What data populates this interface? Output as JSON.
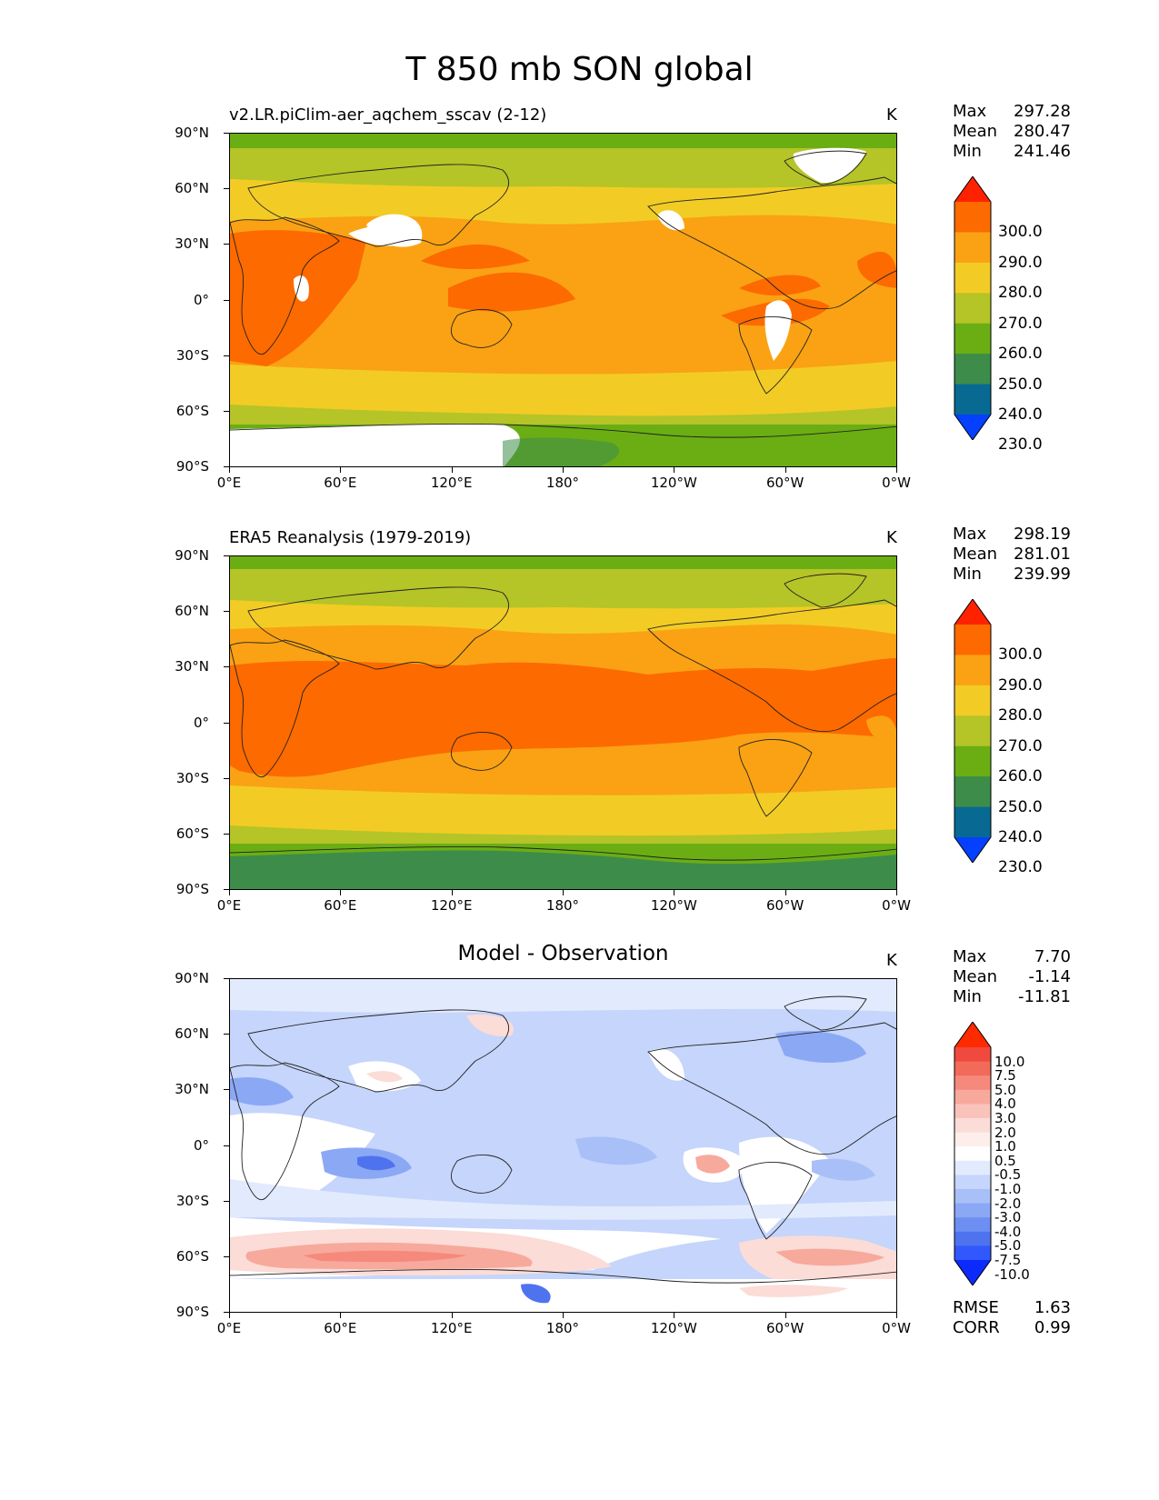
{
  "figure": {
    "title": "T 850 mb SON global"
  },
  "axes": {
    "y_ticks": [
      "90°N",
      "60°N",
      "30°N",
      "0°",
      "30°S",
      "60°S",
      "90°S"
    ],
    "x_ticks": [
      "0°E",
      "60°E",
      "120°E",
      "180°",
      "120°W",
      "60°W",
      "0°W"
    ]
  },
  "panels": [
    {
      "title": "v2.LR.piClim-aer_aqchem_sscav (2-12)",
      "units": "K",
      "stats": {
        "max_label": "Max",
        "max": "297.28",
        "mean_label": "Mean",
        "mean": "280.47",
        "min_label": "Min",
        "min": "241.46"
      },
      "colorbar": {
        "labels": [
          "300.0",
          "290.0",
          "280.0",
          "270.0",
          "260.0",
          "250.0",
          "240.0",
          "230.0"
        ],
        "colors": [
          "#ff2200",
          "#fd6a00",
          "#faa213",
          "#f2cc25",
          "#b5c427",
          "#6aae14",
          "#3d8c4a",
          "#086a92",
          "#0440fd"
        ]
      },
      "chart_data": {
        "type": "heatmap",
        "variable": "T 850 mb",
        "units": "K",
        "max": 297.28,
        "mean": 280.47,
        "min": 241.46,
        "levels": [
          230,
          240,
          250,
          260,
          270,
          280,
          290,
          300
        ]
      }
    },
    {
      "title": "ERA5 Reanalysis (1979-2019)",
      "units": "K",
      "stats": {
        "max_label": "Max",
        "max": "298.19",
        "mean_label": "Mean",
        "mean": "281.01",
        "min_label": "Min",
        "min": "239.99"
      },
      "colorbar": {
        "labels": [
          "300.0",
          "290.0",
          "280.0",
          "270.0",
          "260.0",
          "250.0",
          "240.0",
          "230.0"
        ],
        "colors": [
          "#ff2200",
          "#fd6a00",
          "#faa213",
          "#f2cc25",
          "#b5c427",
          "#6aae14",
          "#3d8c4a",
          "#086a92",
          "#0440fd"
        ]
      },
      "chart_data": {
        "type": "heatmap",
        "variable": "T 850 mb",
        "units": "K",
        "max": 298.19,
        "mean": 281.01,
        "min": 239.99,
        "levels": [
          230,
          240,
          250,
          260,
          270,
          280,
          290,
          300
        ]
      }
    },
    {
      "title": "Model - Observation",
      "units": "K",
      "stats": {
        "max_label": "Max",
        "max": "7.70",
        "mean_label": "Mean",
        "mean": "-1.14",
        "min_label": "Min",
        "min": "-11.81"
      },
      "colorbar": {
        "labels": [
          "10.0",
          "7.5",
          "5.0",
          "4.0",
          "3.0",
          "2.0",
          "1.0",
          "0.5",
          "-0.5",
          "-1.0",
          "-2.0",
          "-3.0",
          "-4.0",
          "-5.0",
          "-7.5",
          "-10.0"
        ],
        "colors": [
          "#ff2a00",
          "#f04a3e",
          "#f26a5a",
          "#f58a7c",
          "#f7a99c",
          "#f9c3bb",
          "#fbdcd7",
          "#fdeeec",
          "#ffffff",
          "#e2eafd",
          "#c5d5fb",
          "#a8bff8",
          "#8ba8f5",
          "#6d8ff2",
          "#4f73ef",
          "#3158fd",
          "#0d2afd"
        ]
      },
      "chart_data": {
        "type": "heatmap",
        "variable": "T 850 mb difference",
        "units": "K",
        "max": 7.7,
        "mean": -1.14,
        "min": -11.81,
        "levels": [
          -10,
          -7.5,
          -5,
          -4,
          -3,
          -2,
          -1,
          -0.5,
          0.5,
          1,
          2,
          3,
          4,
          5,
          7.5,
          10
        ]
      },
      "footer": {
        "rmse_label": "RMSE",
        "rmse": "1.63",
        "corr_label": "CORR",
        "corr": "0.99"
      }
    }
  ]
}
